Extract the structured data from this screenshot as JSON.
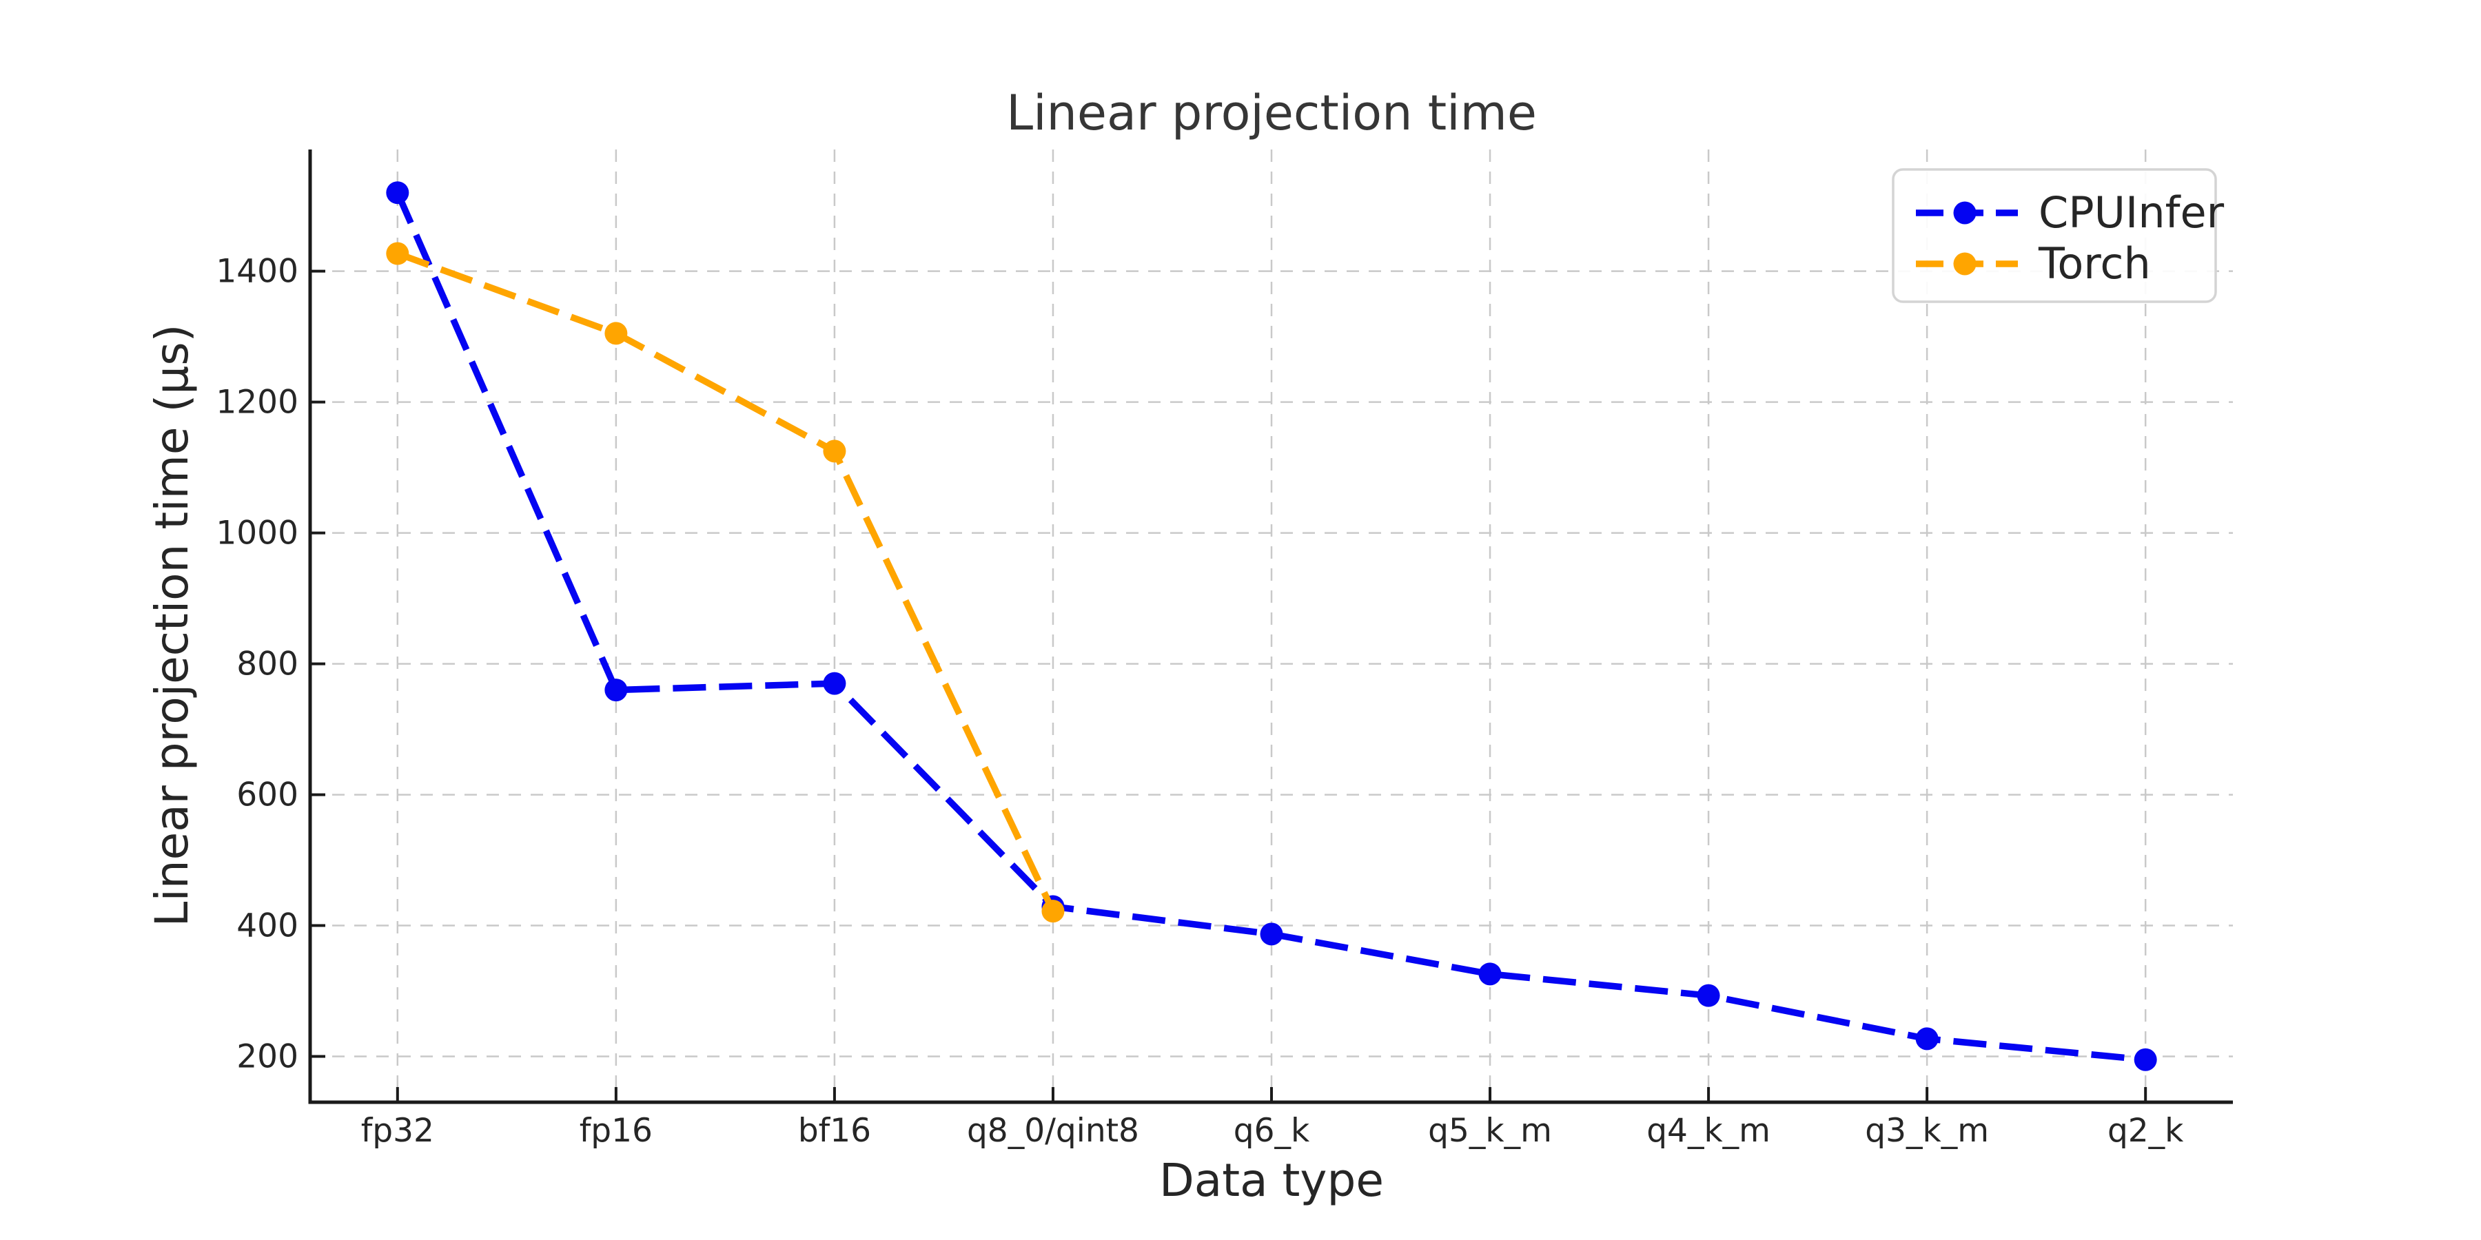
{
  "chart_data": {
    "type": "line",
    "title": "Linear projection time",
    "xlabel": "Data type",
    "ylabel": "Linear projection time (μs)",
    "categories": [
      "fp32",
      "fp16",
      "bf16",
      "q8_0/qint8",
      "q6_k",
      "q5_k_m",
      "q4_k_m",
      "q3_k_m",
      "q2_k"
    ],
    "yticks": [
      200,
      400,
      600,
      800,
      1000,
      1200,
      1400
    ],
    "ylim": [
      130,
      1586
    ],
    "grid": true,
    "grid_style": "dashed",
    "line_style": "dashed",
    "marker": "circle",
    "legend_position": "upper right",
    "series": [
      {
        "name": "CPUInfer",
        "color": "#0404f2",
        "values": [
          1520,
          760,
          770,
          429,
          387,
          326,
          293,
          227,
          195
        ]
      },
      {
        "name": "Torch",
        "color": "#ffa500",
        "values": [
          1427,
          1305,
          1125,
          422
        ]
      }
    ]
  },
  "colors": {
    "background": "#ffffff",
    "grid": "#c9c9c9",
    "spine": "#1a1a1a",
    "tick_label": "#262626",
    "axis_label": "#262626",
    "title": "#363636",
    "legend_border": "#d4d4d4",
    "legend_background": "#ffffff",
    "legend_text": "#262626"
  }
}
